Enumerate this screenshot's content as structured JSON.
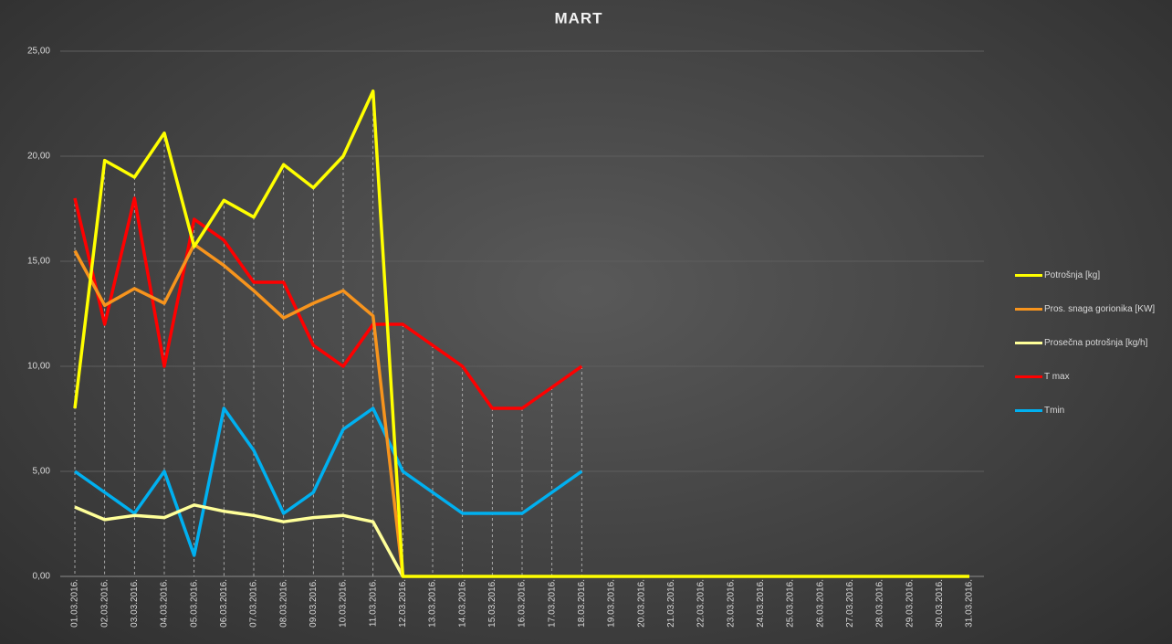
{
  "chart_data": {
    "type": "line",
    "title": "MART",
    "categories": [
      "01.03.2016.",
      "02.03.2016.",
      "03.03.2016.",
      "04.03.2016.",
      "05.03.2016.",
      "06.03.2016.",
      "07.03.2016.",
      "08.03.2016.",
      "09.03.2016.",
      "10.03.2016.",
      "11.03.2016.",
      "12.03.2016.",
      "13.03.2016.",
      "14.03.2016.",
      "15.03.2016.",
      "16.03.2016.",
      "17.03.2016.",
      "18.03.2016.",
      "19.03.2016.",
      "20.03.2016.",
      "21.03.2016.",
      "22.03.2016.",
      "23.03.2016.",
      "24.03.2016.",
      "25.03.2016.",
      "26.03.2016.",
      "27.03.2016.",
      "28.03.2016.",
      "29.03.2016.",
      "30.03.2016.",
      "31.03.2016."
    ],
    "series": [
      {
        "name": "Potrošnja [kg]",
        "color": "#ffff00",
        "values": [
          8,
          19.8,
          19,
          21.1,
          15.7,
          17.9,
          17.1,
          19.6,
          18.5,
          20,
          23.1,
          0,
          0,
          0,
          0,
          0,
          0,
          0,
          0,
          0,
          0,
          0,
          0,
          0,
          0,
          0,
          0,
          0,
          0,
          0,
          0
        ]
      },
      {
        "name": "Pros. snaga gorionika [KW]",
        "color": "#f7941d",
        "values": [
          15.5,
          12.9,
          13.7,
          13,
          15.8,
          14.8,
          13.6,
          12.3,
          13,
          13.6,
          12.4,
          0,
          null,
          null,
          null,
          null,
          null,
          null,
          null,
          null,
          null,
          null,
          null,
          null,
          null,
          null,
          null,
          null,
          null,
          null,
          null
        ]
      },
      {
        "name": "Prosečna potrošnja [kg/h]",
        "color": "#ffff99",
        "values": [
          3.3,
          2.7,
          2.9,
          2.8,
          3.4,
          3.1,
          2.9,
          2.6,
          2.8,
          2.9,
          2.6,
          0,
          null,
          null,
          null,
          null,
          null,
          null,
          null,
          null,
          null,
          null,
          null,
          null,
          null,
          null,
          null,
          null,
          null,
          null,
          null
        ]
      },
      {
        "name": "T max",
        "color": "#ff0000",
        "values": [
          18,
          12,
          18,
          10,
          17,
          16,
          14,
          14,
          11,
          10,
          12,
          12,
          11,
          10,
          8,
          8,
          9,
          10,
          null,
          null,
          null,
          null,
          null,
          null,
          null,
          null,
          null,
          null,
          null,
          null,
          null
        ]
      },
      {
        "name": "Tmin",
        "color": "#00b0f0",
        "values": [
          5,
          4,
          3,
          5,
          1,
          8,
          6,
          3,
          4,
          7,
          8,
          5,
          4,
          3,
          3,
          3,
          4,
          5,
          null,
          null,
          null,
          null,
          null,
          null,
          null,
          null,
          null,
          null,
          null,
          null,
          null
        ]
      }
    ],
    "ylim": [
      0,
      25
    ],
    "yticks": [
      {
        "value": 0,
        "label": "0,00"
      },
      {
        "value": 5,
        "label": "5,00"
      },
      {
        "value": 10,
        "label": "10,00"
      },
      {
        "value": 15,
        "label": "15,00"
      },
      {
        "value": 20,
        "label": "20,00"
      },
      {
        "value": 25,
        "label": "25,00"
      }
    ],
    "grid": true,
    "legend": "right"
  }
}
